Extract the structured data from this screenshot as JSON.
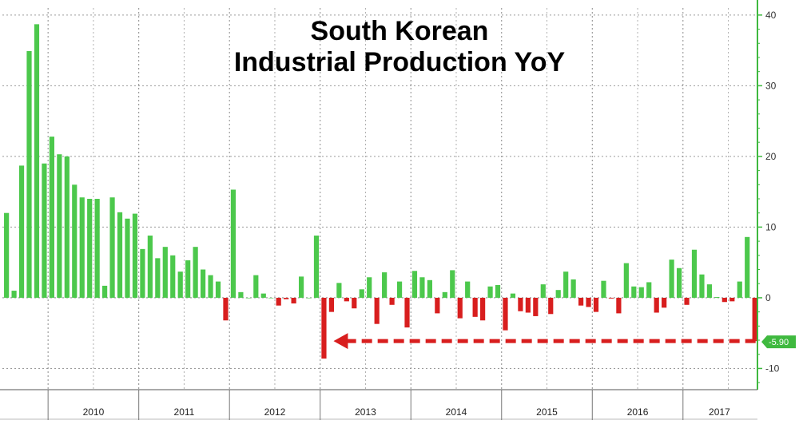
{
  "chart_data": {
    "type": "bar",
    "title": [
      "South Korean",
      "Industrial Production YoY"
    ],
    "ylim": [
      -13,
      41
    ],
    "y_ticks": [
      40,
      30,
      20,
      10,
      0,
      -10
    ],
    "x_tick_labels": [
      "2010",
      "2011",
      "2012",
      "2013",
      "2014",
      "2015",
      "2016",
      "2017"
    ],
    "grid": true,
    "positive_color": "#4cc84c",
    "negative_color": "#d81e1e",
    "last_value_label": "-5.90",
    "last_value_color": "#3fb93f",
    "annotation": "dashed red arrow from latest value back to Jan 2013",
    "series": [
      {
        "start": "2009-07",
        "frequency": "monthly",
        "values": [
          12.0,
          1.0,
          18.7,
          34.9,
          38.7,
          19.0,
          22.8,
          20.3,
          20.0,
          16.0,
          14.2,
          14.0,
          14.0,
          1.7,
          14.2,
          12.1,
          11.2,
          11.9,
          6.9,
          8.8,
          5.6,
          7.2,
          6.0,
          3.7,
          5.3,
          7.2,
          4.0,
          3.2,
          2.3,
          -3.2,
          15.3,
          0.8,
          0.0,
          3.2,
          0.6,
          0.0,
          -1.1,
          -0.2,
          -0.8,
          3.0,
          0.0,
          8.8,
          -8.6,
          -2.0,
          2.1,
          -0.5,
          -1.5,
          1.2,
          2.9,
          -3.7,
          3.6,
          -1.0,
          2.3,
          -4.2,
          3.8,
          2.9,
          2.5,
          -2.2,
          0.8,
          3.9,
          -2.9,
          2.3,
          -2.7,
          -3.2,
          1.6,
          1.8,
          -4.6,
          0.6,
          -1.9,
          -2.1,
          -2.6,
          1.9,
          -2.3,
          1.1,
          3.7,
          2.6,
          -1.1,
          -1.3,
          -2.0,
          2.4,
          -0.1,
          -2.2,
          4.9,
          1.6,
          1.5,
          2.2,
          -2.1,
          -1.4,
          5.4,
          4.2,
          -1.0,
          6.8,
          3.3,
          1.9,
          0.1,
          -0.6,
          -0.5,
          2.3,
          8.6,
          -5.9
        ]
      }
    ]
  }
}
